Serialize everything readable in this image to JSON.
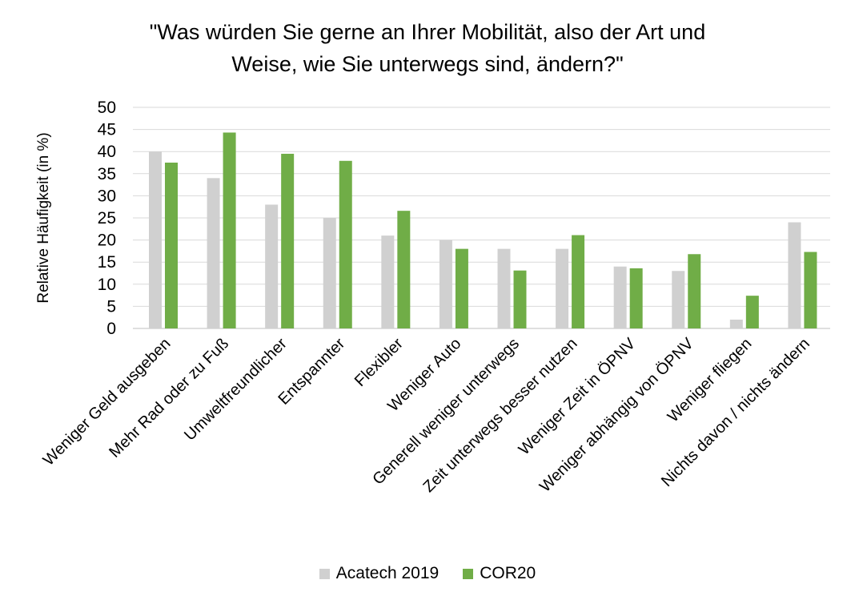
{
  "chart_data": {
    "type": "bar",
    "title": "\"Was würden Sie gerne an Ihrer Mobilität, also der Art und",
    "subtitle": "Weise, wie Sie unterwegs sind, ändern?\"",
    "xlabel": "",
    "ylabel": "Relative Häufigkeit (in %)",
    "ylim": [
      0,
      50
    ],
    "yticks": [
      0,
      5,
      10,
      15,
      20,
      25,
      30,
      35,
      40,
      45,
      50
    ],
    "grid": true,
    "legend_position": "bottom",
    "categories": [
      "Weniger Geld ausgeben",
      "Mehr Rad oder zu Fuß",
      "Umweltfreundlicher",
      "Entspannter",
      "Flexibler",
      "Weniger Auto",
      "Generell weniger unterwegs",
      "Zeit unterwegs besser nutzen",
      "Weniger Zeit in ÖPNV",
      "Weniger abhängig von ÖPNV",
      "Weniger fliegen",
      "Nichts davon / nichts ändern"
    ],
    "series": [
      {
        "name": "Acatech 2019",
        "color": "#d0d0d0",
        "values": [
          40,
          34,
          28,
          25,
          21,
          20,
          18,
          18,
          14,
          13,
          2,
          24
        ]
      },
      {
        "name": "COR20",
        "color": "#70ad47",
        "values": [
          37.5,
          44.3,
          39.5,
          37.9,
          26.6,
          18,
          13.1,
          21.1,
          13.6,
          16.8,
          7.4,
          17.3
        ]
      }
    ]
  }
}
